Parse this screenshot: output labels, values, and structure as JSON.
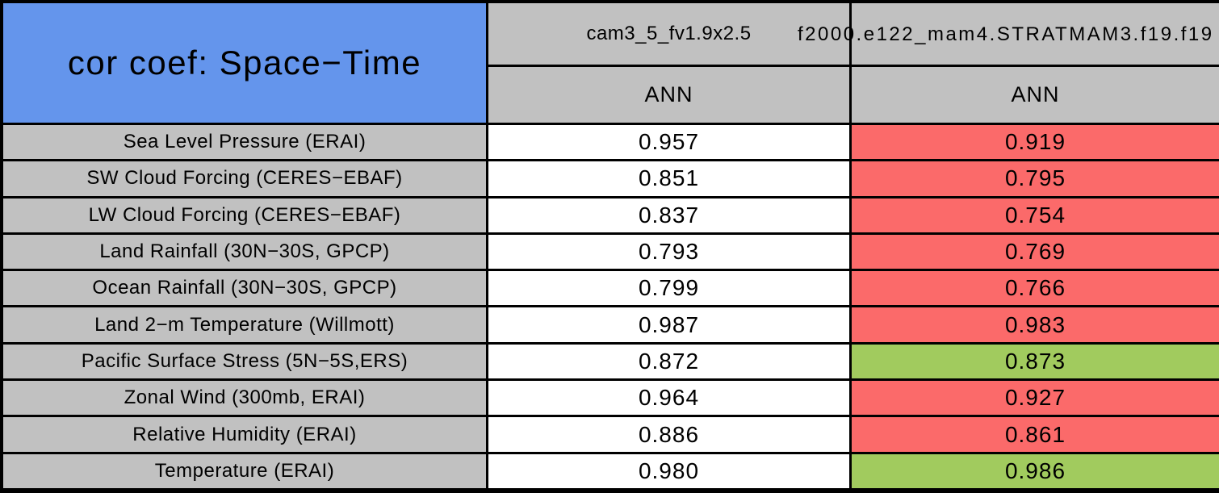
{
  "title": "cor coef: Space−Time",
  "header": {
    "control_model": "cam3_5_fv1.9x2.5",
    "test_model": "f2000.e122_mam4.STRATMAM3.f19.f19",
    "control_season": "ANN",
    "test_season": "ANN"
  },
  "rows": [
    {
      "label": "Sea Level Pressure (ERAI)",
      "control": "0.957",
      "control_bg": "white",
      "test": "0.919",
      "test_bg": "red"
    },
    {
      "label": "SW Cloud Forcing (CERES−EBAF)",
      "control": "0.851",
      "control_bg": "white",
      "test": "0.795",
      "test_bg": "red"
    },
    {
      "label": "LW Cloud Forcing (CERES−EBAF)",
      "control": "0.837",
      "control_bg": "white",
      "test": "0.754",
      "test_bg": "red"
    },
    {
      "label": "Land Rainfall (30N−30S, GPCP)",
      "control": "0.793",
      "control_bg": "white",
      "test": "0.769",
      "test_bg": "red"
    },
    {
      "label": "Ocean Rainfall (30N−30S, GPCP)",
      "control": "0.799",
      "control_bg": "white",
      "test": "0.766",
      "test_bg": "red"
    },
    {
      "label": "Land 2−m Temperature (Willmott)",
      "control": "0.987",
      "control_bg": "white",
      "test": "0.983",
      "test_bg": "red"
    },
    {
      "label": "Pacific Surface Stress (5N−5S,ERS)",
      "control": "0.872",
      "control_bg": "white",
      "test": "0.873",
      "test_bg": "green"
    },
    {
      "label": "Zonal Wind (300mb, ERAI)",
      "control": "0.964",
      "control_bg": "white",
      "test": "0.927",
      "test_bg": "red"
    },
    {
      "label": "Relative Humidity (ERAI)",
      "control": "0.886",
      "control_bg": "white",
      "test": "0.861",
      "test_bg": "red"
    },
    {
      "label": "Temperature (ERAI)",
      "control": "0.980",
      "control_bg": "white",
      "test": "0.986",
      "test_bg": "green"
    }
  ],
  "colors": {
    "title_blue": "#6495EC",
    "header_gray": "#C1C1C1",
    "worse_red": "#FB6A6A",
    "better_green": "#A1CB5E",
    "grid_black": "#000000",
    "control_white": "#FFFFFF"
  },
  "chart_data": {
    "type": "table",
    "title": "cor coef: Space−Time",
    "row_labels": [
      "Sea Level Pressure (ERAI)",
      "SW Cloud Forcing (CERES−EBAF)",
      "LW Cloud Forcing (CERES−EBAF)",
      "Land Rainfall (30N−30S, GPCP)",
      "Ocean Rainfall (30N−30S, GPCP)",
      "Land 2−m Temperature (Willmott)",
      "Pacific Surface Stress (5N−5S,ERS)",
      "Zonal Wind (300mb, ERAI)",
      "Relative Humidity (ERAI)",
      "Temperature (ERAI)"
    ],
    "series": [
      {
        "name": "cam3_5_fv1.9x2.5",
        "season": "ANN",
        "values": [
          0.957,
          0.851,
          0.837,
          0.793,
          0.799,
          0.987,
          0.872,
          0.964,
          0.886,
          0.98
        ],
        "cell_colors": [
          "white",
          "white",
          "white",
          "white",
          "white",
          "white",
          "white",
          "white",
          "white",
          "white"
        ]
      },
      {
        "name": "f2000.e122_mam4.STRATMAM3.f19.f19",
        "season": "ANN",
        "values": [
          0.919,
          0.795,
          0.754,
          0.769,
          0.766,
          0.983,
          0.873,
          0.927,
          0.861,
          0.986
        ],
        "cell_colors": [
          "red",
          "red",
          "red",
          "red",
          "red",
          "red",
          "green",
          "red",
          "red",
          "green"
        ]
      }
    ]
  }
}
